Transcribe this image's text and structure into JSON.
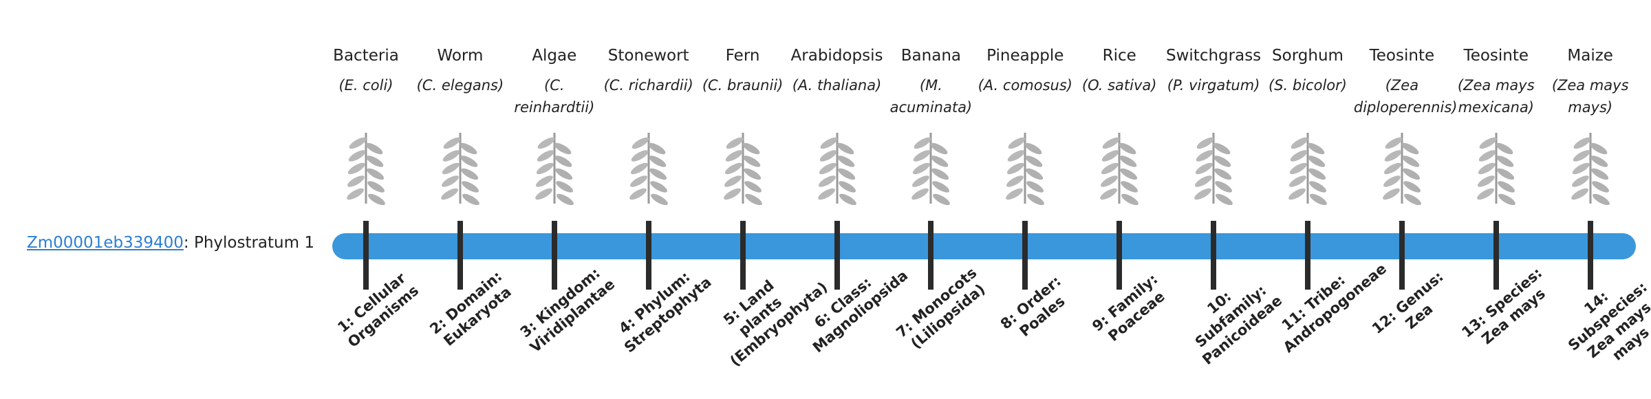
{
  "gene": {
    "id": "Zm00001eb339400",
    "suffix": ": Phylostratum 1"
  },
  "strata": [
    {
      "name": "Bacteria",
      "species": "(E. coli)",
      "label": "1: Cellular Organisms"
    },
    {
      "name": "Worm",
      "species": "(C. elegans)",
      "label": "2: Domain: Eukaryota"
    },
    {
      "name": "Algae",
      "species": "(C. reinhardtii)",
      "label": "3: Kingdom: Viridiplantae"
    },
    {
      "name": "Stonewort",
      "species": "(C. richardii)",
      "label": "4: Phylum: Streptophyta"
    },
    {
      "name": "Fern",
      "species": "(C. braunii)",
      "label": "5: Land plants (Embryophyta)"
    },
    {
      "name": "Arabidopsis",
      "species": "(A. thaliana)",
      "label": "6: Class: Magnoliopsida"
    },
    {
      "name": "Banana",
      "species": "(M. acuminata)",
      "label": "7: Monocots (Liliopsida)"
    },
    {
      "name": "Pineapple",
      "species": "(A. comosus)",
      "label": "8: Order: Poales"
    },
    {
      "name": "Rice",
      "species": "(O. sativa)",
      "label": "9: Family: Poaceae"
    },
    {
      "name": "Switchgrass",
      "species": "(P. virgatum)",
      "label": "10: Subfamily: Panicoideae"
    },
    {
      "name": "Sorghum",
      "species": "(S. bicolor)",
      "label": "11: Tribe: Andropogoneae"
    },
    {
      "name": "Teosinte",
      "species": "(Zea diploperennis)",
      "label": "12: Genus: Zea"
    },
    {
      "name": "Teosinte",
      "species": "(Zea mays mexicana)",
      "label": "13: Species: Zea mays"
    },
    {
      "name": "Maize",
      "species": "(Zea mays mays)",
      "label": "14: Subspecies: Zea mays mays"
    }
  ]
}
